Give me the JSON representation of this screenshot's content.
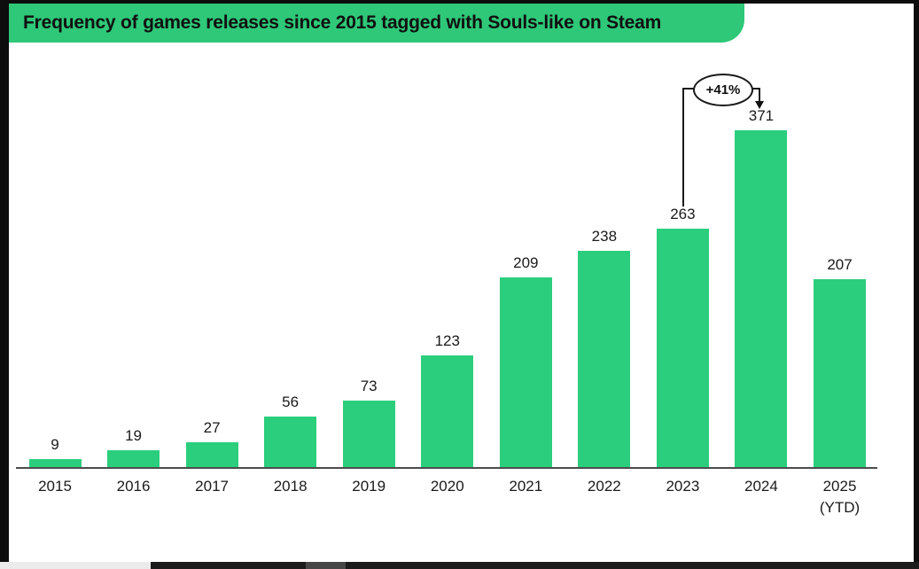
{
  "window": {
    "banner_title": "Frequency of games releases since 2015 tagged with Souls-like on Steam"
  },
  "chart_data": {
    "type": "bar",
    "title": "Frequency of games releases since 2015 tagged with Souls-like on Steam",
    "categories": [
      "2015",
      "2016",
      "2017",
      "2018",
      "2019",
      "2020",
      "2021",
      "2022",
      "2023",
      "2024",
      "2025"
    ],
    "category_sublabels": [
      "",
      "",
      "",
      "",
      "",
      "",
      "",
      "",
      "",
      "",
      "(YTD)"
    ],
    "values": [
      9,
      19,
      27,
      56,
      73,
      123,
      209,
      238,
      263,
      371,
      207
    ],
    "xlabel": "",
    "ylabel": "",
    "ylim": [
      0,
      371
    ],
    "grid": false,
    "legend": "none",
    "value_labels": true,
    "annotation": {
      "text": "+41%",
      "from_category": "2023",
      "from_value": 263,
      "to_category": "2024",
      "to_value": 371
    }
  },
  "colors": {
    "banner_green": "#2ec878",
    "bar_green": "#2bce7c",
    "frame_black": "#0d0d0d",
    "axis_gray": "#4d4d4d",
    "text_dark": "#1a1a1a"
  }
}
